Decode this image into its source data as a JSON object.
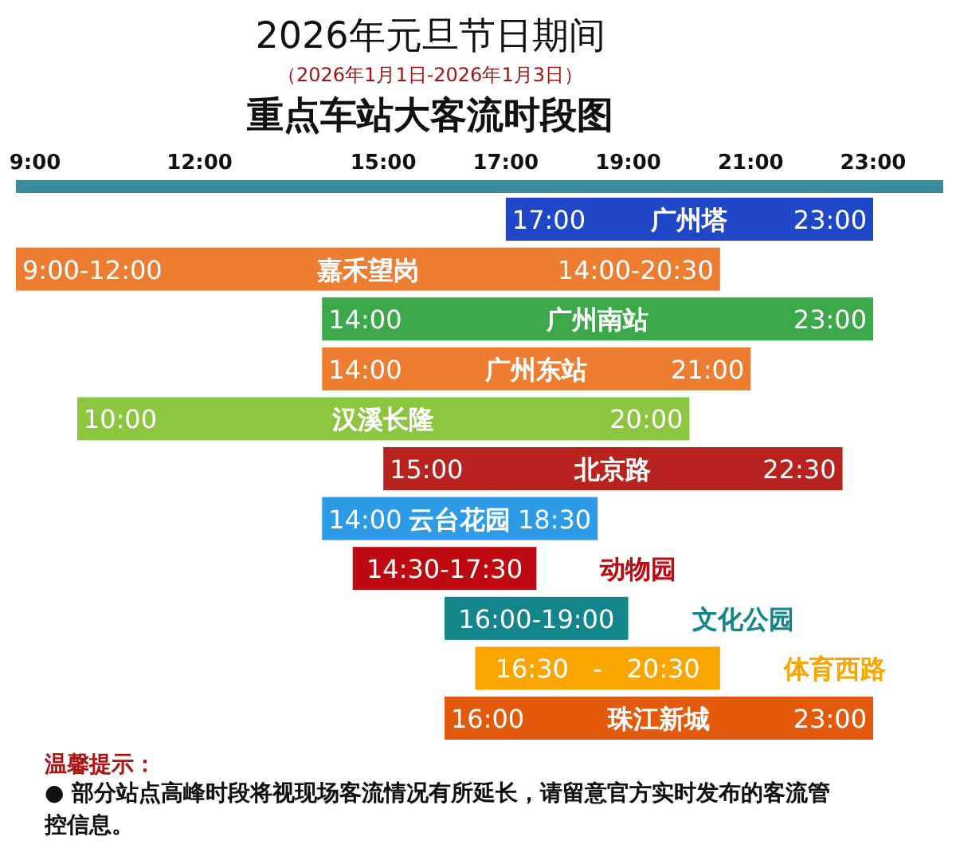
{
  "chart_data": {
    "type": "bar",
    "orientation": "horizontal",
    "title": "2026年元旦节日期间",
    "subtitle": "（2026年1月1日-2026年1月3日）",
    "categories": [
      "广州塔",
      "嘉禾望岗",
      "广州南站",
      "广州东站",
      "汉溪长隆",
      "北京路",
      "云台花园",
      "动物园",
      "文化公园",
      "体育西路",
      "珠江新城"
    ],
    "base": [
      17,
      9,
      14,
      14,
      10,
      15,
      14,
      14.5,
      16,
      16.5,
      16
    ],
    "values": [
      6,
      11.5,
      9,
      7,
      10,
      7.5,
      4.5,
      3,
      3,
      4,
      7
    ],
    "colors": [
      "#1f47c8",
      "#ed7d31",
      "#3ba84a",
      "#ed7d31",
      "#8cc63f",
      "#b8231f",
      "#2e9be6",
      "#c00a12",
      "#12868a",
      "#f9a602",
      "#e35a0c"
    ],
    "xlim": [
      9,
      23
    ],
    "xticks": [
      {
        "value": 9,
        "label": "9:00"
      },
      {
        "value": 12,
        "label": "12:00"
      },
      {
        "value": 15,
        "label": "15:00"
      },
      {
        "value": 17,
        "label": "17:00"
      },
      {
        "value": 19,
        "label": "19:00"
      },
      {
        "value": 21,
        "label": "21:00"
      },
      {
        "value": 23,
        "label": "23:00"
      }
    ],
    "annotations": [
      "重点车站大客流时段图",
      {
        "text": "17:00",
        "x": 17,
        "y": "广州塔"
      },
      {
        "text": "23:00",
        "x": 23,
        "y": "广州塔"
      },
      {
        "text": "9:00-12:00",
        "x": 9,
        "y": "嘉禾望岗"
      },
      {
        "text": "14:00-20:30",
        "x": 20.5,
        "y": "嘉禾望岗"
      },
      {
        "text": "14:00",
        "x": 14,
        "y": "广州南站"
      },
      {
        "text": "23:00",
        "x": 23,
        "y": "广州南站"
      },
      {
        "text": "14:00",
        "x": 14,
        "y": "广州东站"
      },
      {
        "text": "21:00",
        "x": 21,
        "y": "广州东站"
      },
      {
        "text": "10:00",
        "x": 10,
        "y": "汉溪长隆"
      },
      {
        "text": "20:00",
        "x": 20,
        "y": "汉溪长隆"
      },
      {
        "text": "15:00",
        "x": 15,
        "y": "北京路"
      },
      {
        "text": "22:30",
        "x": 22.5,
        "y": "北京路"
      },
      {
        "text": "14:00",
        "x": 14,
        "y": "云台花园"
      },
      {
        "text": "18:30",
        "x": 18.5,
        "y": "云台花园"
      },
      {
        "text": "14:30-17:30",
        "x": 16,
        "y": "动物园"
      },
      {
        "text": "16:00-19:00",
        "x": 17.5,
        "y": "文化公园"
      },
      {
        "text": "16:30   -   20:30",
        "x": 18.5,
        "y": "体育西路"
      },
      {
        "text": "16:00",
        "x": 16,
        "y": "珠江新城"
      },
      {
        "text": "23:00",
        "x": 23,
        "y": "珠江新城"
      },
      "温馨提示：",
      "●  部分站点高峰时段将视现场客流情况有所延长，请留意官方实时发布的客流管控信息。"
    ]
  }
}
